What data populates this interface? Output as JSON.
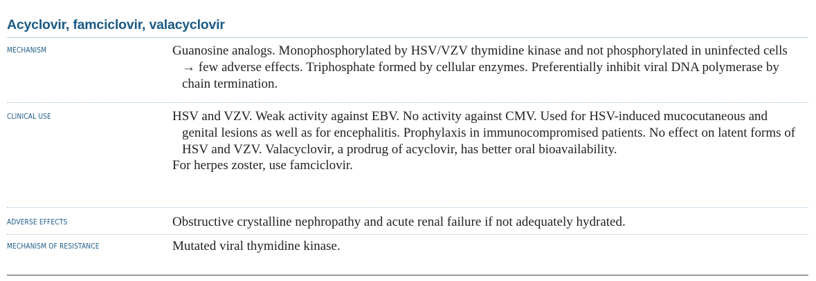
{
  "title": "Acyclovir, famciclovir, valacyclovir",
  "rows": [
    {
      "label": "MECHANISM",
      "paragraphs": [
        "Guanosine analogs. Monophosphorylated by HSV/VZV thymidine kinase and not phosphorylated in uninfected cells → few adverse effects. Triphosphate formed by cellular enzymes. Preferentially inhibit viral DNA polymerase by chain termination."
      ]
    },
    {
      "label": "CLINICAL USE",
      "paragraphs": [
        "HSV and VZV. Weak activity against EBV. No activity against CMV. Used for HSV-induced mucocutaneous and genital lesions as well as for encephalitis. Prophylaxis in immunocompromised patients. No effect on latent forms of HSV and VZV. Valacyclovir, a prodrug of acyclovir, has better oral bioavailability.",
        "For herpes zoster, use famciclovir."
      ]
    },
    {
      "label": "ADVERSE EFFECTS",
      "paragraphs": [
        "Obstructive crystalline nephropathy and acute renal failure if not adequately hydrated."
      ]
    },
    {
      "label": "MECHANISM OF RESISTANCE",
      "paragraphs": [
        "Mutated viral thymidine kinase."
      ]
    }
  ]
}
